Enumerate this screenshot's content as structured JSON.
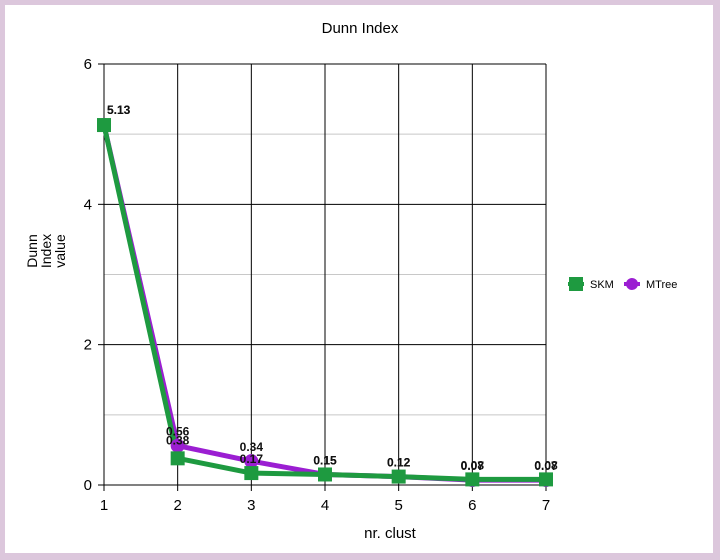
{
  "chart_data": {
    "type": "line",
    "title": "Dunn Index",
    "xlabel": "nr. clust",
    "ylabel": "Dunn Index value",
    "categories": [
      1,
      2,
      3,
      4,
      5,
      6,
      7
    ],
    "xticks": [
      "1",
      "2",
      "3",
      "4",
      "5",
      "6",
      "7"
    ],
    "yticks": [
      "0",
      "2",
      "4",
      "6"
    ],
    "ylim": [
      0,
      6
    ],
    "grid": true,
    "legend_position": "right",
    "series": [
      {
        "name": "SKM",
        "values": [
          5.13,
          0.38,
          0.17,
          0.15,
          0.12,
          0.08,
          0.08
        ],
        "labels": [
          "5.13",
          "0.38",
          "0.17",
          "0.15",
          "0.12",
          "0.08",
          "0.08"
        ],
        "color": "#1e9a40",
        "marker": "square"
      },
      {
        "name": "MTree",
        "values": [
          5.13,
          0.56,
          0.34,
          0.15,
          0.12,
          0.07,
          0.07
        ],
        "labels": [
          "5.13",
          "0.56",
          "0.34",
          "0.15",
          "0.12",
          "0.07",
          "0.07"
        ],
        "color": "#9b1ed2",
        "marker": "circle"
      }
    ]
  }
}
